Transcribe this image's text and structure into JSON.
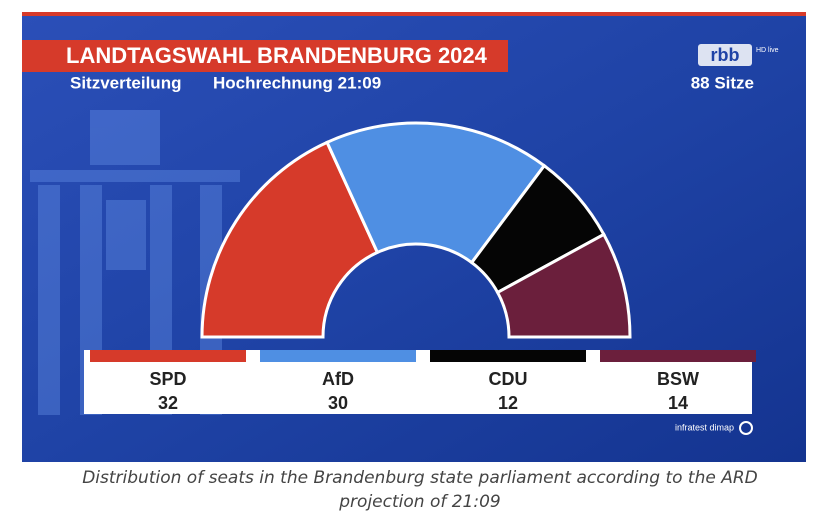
{
  "chart_data": {
    "type": "parliament",
    "title": "LANDTAGSWAHL BRANDENBURG 2024",
    "subtitle": "Sitzverteilung",
    "projection": "Hochrechnung 21:09",
    "total_label": "88 Sitze",
    "broadcaster": "rbb",
    "broadcaster_tag": "HD live",
    "source": "infratest dimap",
    "categories": [
      "SPD",
      "AfD",
      "CDU",
      "BSW"
    ],
    "values": [
      32,
      30,
      12,
      14
    ],
    "colors": [
      "#d63a2a",
      "#4f8fe3",
      "#050505",
      "#6b1f3c"
    ],
    "caption": "Distribution of seats in the Brandenburg state parliament according to the ARD projection of 21:09"
  }
}
